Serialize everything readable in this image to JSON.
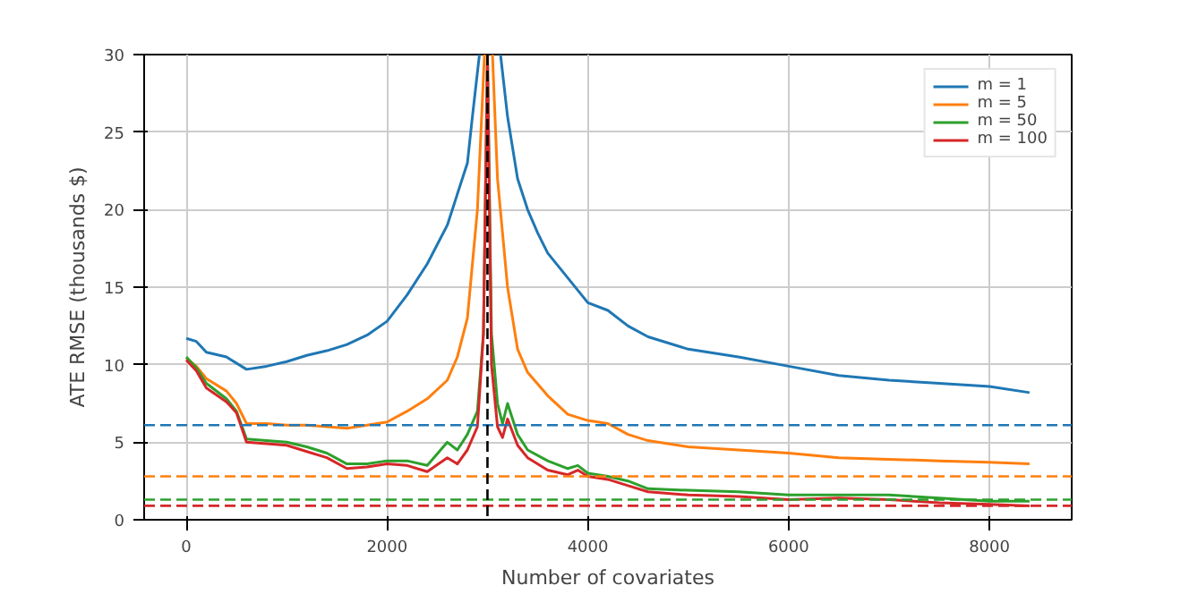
{
  "chart_data": {
    "type": "line",
    "xlabel": "Number of covariates",
    "ylabel": "ATE RMSE (thousands $)",
    "xlim": [
      -420,
      8820
    ],
    "ylim": [
      0,
      30
    ],
    "xticks": [
      0,
      2000,
      4000,
      6000,
      8000
    ],
    "yticks": [
      0,
      5,
      10,
      15,
      20,
      25,
      30
    ],
    "grid": true,
    "legend": "top right",
    "line_style": "solid",
    "marker": "none",
    "series": [
      {
        "name": "m = 1",
        "color": "#1f77b4",
        "x": [
          0,
          100,
          200,
          400,
          600,
          800,
          1000,
          1200,
          1400,
          1600,
          1800,
          2000,
          2200,
          2400,
          2600,
          2800,
          2850,
          2920,
          3000,
          3130,
          3200,
          3300,
          3400,
          3500,
          3600,
          3800,
          4000,
          4200,
          4400,
          4600,
          5000,
          5500,
          6000,
          6500,
          7000,
          7500,
          8000,
          8400
        ],
        "values": [
          11.7,
          11.5,
          10.8,
          10.5,
          9.7,
          9.9,
          10.2,
          10.6,
          10.9,
          11.3,
          11.9,
          12.8,
          14.5,
          16.5,
          19,
          23,
          26,
          30,
          null,
          30,
          26,
          22,
          20,
          18.5,
          17.2,
          15.6,
          14,
          13.5,
          12.5,
          11.8,
          11,
          10.5,
          9.9,
          9.3,
          9.0,
          8.8,
          8.6,
          8.2
        ]
      },
      {
        "name": "m = 5",
        "color": "#ff7f0e",
        "x": [
          0,
          100,
          200,
          400,
          500,
          600,
          800,
          1000,
          1200,
          1400,
          1600,
          1800,
          2000,
          2200,
          2400,
          2600,
          2700,
          2800,
          2900,
          2970,
          3000,
          3050,
          3100,
          3200,
          3300,
          3400,
          3600,
          3800,
          4000,
          4200,
          4400,
          4600,
          5000,
          5500,
          6000,
          6500,
          7000,
          7500,
          8000,
          8400
        ],
        "values": [
          10.4,
          9.9,
          9.1,
          8.3,
          7.5,
          6.2,
          6.2,
          6.1,
          6.1,
          6.0,
          5.9,
          6.1,
          6.3,
          7.0,
          7.8,
          9.0,
          10.5,
          13,
          20,
          30,
          null,
          30,
          22,
          15,
          11,
          9.5,
          8.0,
          6.8,
          6.4,
          6.2,
          5.5,
          5.1,
          4.7,
          4.5,
          4.3,
          4.0,
          3.9,
          3.8,
          3.7,
          3.6
        ]
      },
      {
        "name": "m = 50",
        "color": "#2ca02c",
        "x": [
          0,
          100,
          200,
          400,
          500,
          600,
          800,
          1000,
          1200,
          1400,
          1600,
          1800,
          2000,
          2200,
          2400,
          2600,
          2700,
          2800,
          2900,
          2960,
          3000,
          3040,
          3100,
          3150,
          3200,
          3300,
          3400,
          3600,
          3800,
          3900,
          4000,
          4200,
          4400,
          4600,
          5000,
          5500,
          6000,
          6500,
          7000,
          7500,
          8000,
          8400
        ],
        "values": [
          10.5,
          9.8,
          8.8,
          7.8,
          7.0,
          5.2,
          5.1,
          5.0,
          4.7,
          4.3,
          3.6,
          3.6,
          3.8,
          3.8,
          3.5,
          5.0,
          4.5,
          5.5,
          7,
          12,
          30,
          12,
          7.5,
          6.2,
          7.5,
          5.5,
          4.5,
          3.8,
          3.3,
          3.5,
          3.0,
          2.8,
          2.5,
          2.0,
          1.9,
          1.8,
          1.6,
          1.6,
          1.6,
          1.4,
          1.2,
          1.2
        ]
      },
      {
        "name": "m = 100",
        "color": "#d62728",
        "x": [
          0,
          100,
          200,
          400,
          500,
          600,
          800,
          1000,
          1200,
          1400,
          1600,
          1800,
          2000,
          2200,
          2400,
          2600,
          2700,
          2800,
          2900,
          2960,
          3000,
          3040,
          3100,
          3150,
          3200,
          3300,
          3400,
          3600,
          3800,
          3900,
          4000,
          4200,
          4400,
          4600,
          5000,
          5500,
          6000,
          6500,
          7000,
          7500,
          8000,
          8400
        ],
        "values": [
          10.3,
          9.6,
          8.5,
          7.6,
          6.9,
          5.0,
          4.9,
          4.8,
          4.4,
          4.0,
          3.3,
          3.4,
          3.6,
          3.5,
          3.1,
          4.0,
          3.6,
          4.5,
          6,
          12,
          30,
          10,
          6,
          5.3,
          6.5,
          4.8,
          4.0,
          3.2,
          2.9,
          3.2,
          2.8,
          2.6,
          2.2,
          1.8,
          1.6,
          1.5,
          1.3,
          1.4,
          1.3,
          1.1,
          1.0,
          0.9
        ]
      }
    ],
    "ref_lines": [
      {
        "axis": "y",
        "value": 6.1,
        "color": "#1f77b4",
        "line_style": "dashed"
      },
      {
        "axis": "y",
        "value": 2.8,
        "color": "#ff7f0e",
        "line_style": "dashed"
      },
      {
        "axis": "y",
        "value": 1.3,
        "color": "#2ca02c",
        "line_style": "dashed"
      },
      {
        "axis": "y",
        "value": 0.9,
        "color": "#d62728",
        "line_style": "dashed"
      },
      {
        "axis": "x",
        "value": 3000,
        "color": "#000000",
        "line_style": "dashed"
      }
    ]
  }
}
